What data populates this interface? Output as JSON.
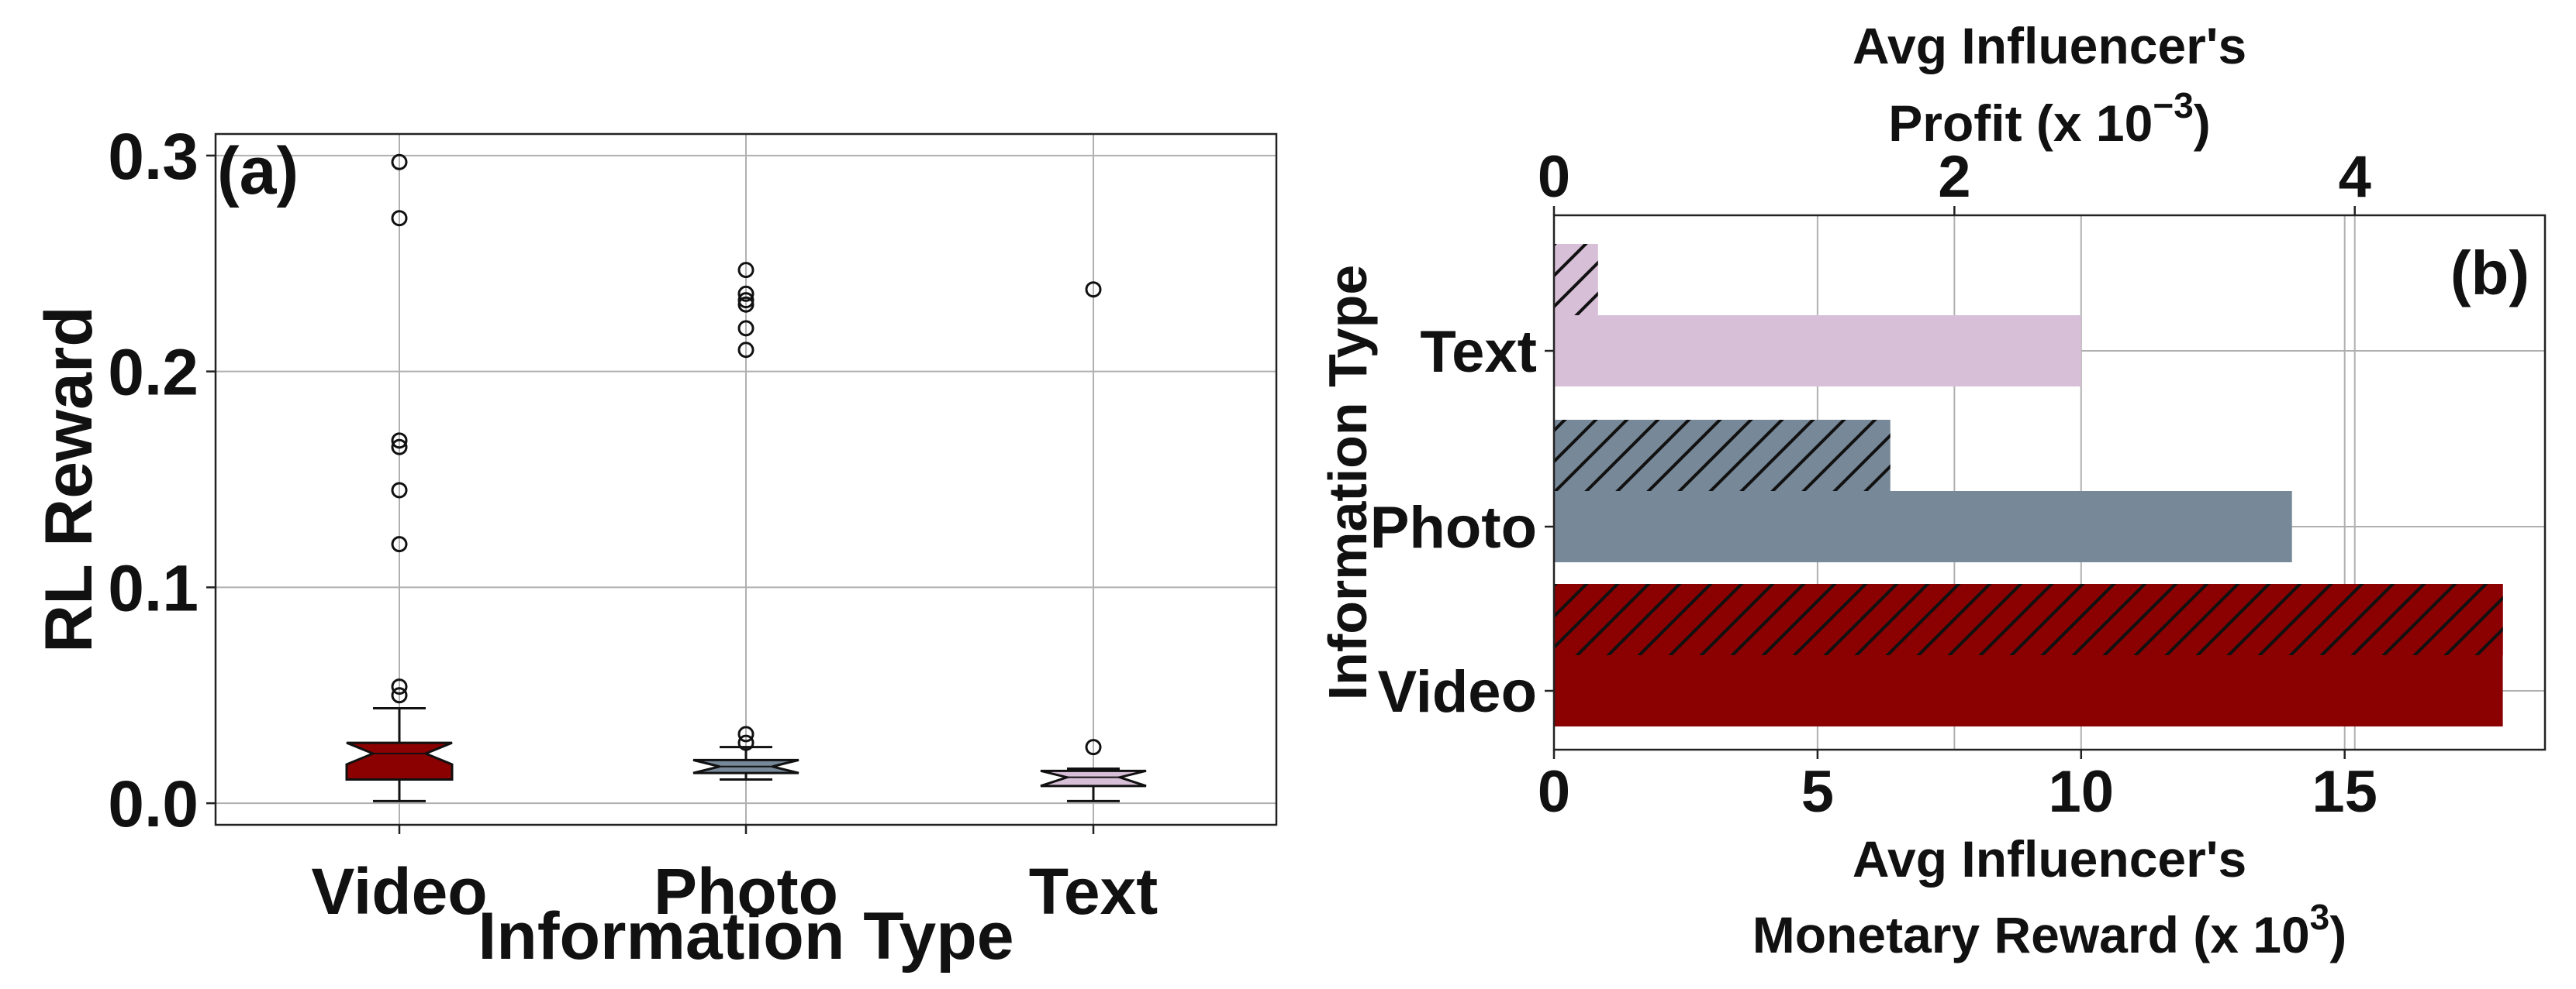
{
  "chart_data": [
    {
      "panel_label": "(a)",
      "type": "box",
      "xlabel": "Information Type",
      "ylabel": "RL Reward",
      "categories": [
        "Video",
        "Photo",
        "Text"
      ],
      "ylim": [
        -0.01,
        0.31
      ],
      "yticks": [
        0.0,
        0.1,
        0.2,
        0.3
      ],
      "ytick_labels": [
        "0.0",
        "0.1",
        "0.2",
        "0.3"
      ],
      "grid": true,
      "boxes": [
        {
          "category": "Video",
          "color": "#8b0000",
          "q1": 0.011,
          "median": 0.023,
          "q3": 0.028,
          "whisker_low": 0.001,
          "whisker_high": 0.044,
          "outliers": [
            0.297,
            0.271,
            0.168,
            0.165,
            0.145,
            0.12,
            0.054,
            0.05
          ]
        },
        {
          "category": "Photo",
          "color": "#778899",
          "q1": 0.014,
          "median": 0.017,
          "q3": 0.02,
          "whisker_low": 0.011,
          "whisker_high": 0.026,
          "outliers": [
            0.247,
            0.236,
            0.233,
            0.231,
            0.22,
            0.21,
            0.032,
            0.028
          ]
        },
        {
          "category": "Text",
          "color": "#d8bfd8",
          "q1": 0.008,
          "median": 0.012,
          "q3": 0.015,
          "whisker_low": 0.001,
          "whisker_high": 0.016,
          "outliers": [
            0.238,
            0.026
          ]
        }
      ]
    },
    {
      "panel_label": "(b)",
      "type": "bar",
      "orientation": "horizontal",
      "ylabel": "Information Type",
      "xlabel": [
        "Avg Influencer's",
        "Monetary Reward (x 10",
        "3",
        ")"
      ],
      "x2label": [
        "Avg Influencer's",
        "Profit (x 10",
        "−3",
        ")"
      ],
      "categories": [
        "Video",
        "Photo",
        "Text"
      ],
      "colors": [
        "#8b0000",
        "#778899",
        "#d8bfd8"
      ],
      "xlim": [
        0,
        18.8
      ],
      "xticks": [
        0,
        5,
        10,
        15
      ],
      "xtick_labels": [
        "0",
        "5",
        "10",
        "15"
      ],
      "x2lim": [
        0,
        4.95
      ],
      "x2ticks": [
        0,
        2,
        4
      ],
      "x2tick_labels": [
        "0",
        "2",
        "4"
      ],
      "grid": true,
      "series": [
        {
          "axis": "bottom",
          "hatch": false,
          "values": [
            18.0,
            14.0,
            10.0
          ]
        },
        {
          "axis": "top",
          "hatch": true,
          "values": [
            4.74,
            1.68,
            0.22
          ]
        }
      ]
    }
  ]
}
